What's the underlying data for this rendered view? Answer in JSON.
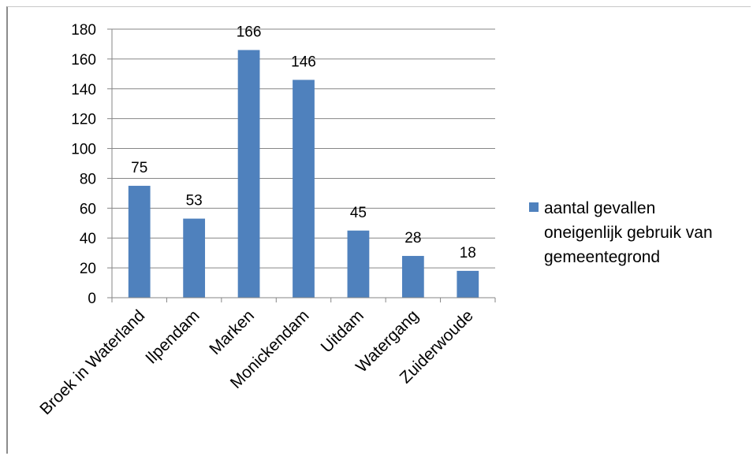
{
  "chart_data": {
    "type": "bar",
    "categories": [
      "Broek in Waterland",
      "Ilpendam",
      "Marken",
      "Monickendam",
      "Uitdam",
      "Watergang",
      "Zuiderwoude"
    ],
    "series": [
      {
        "name": "aantal gevallen oneigenlijk gebruik van gemeentegrond",
        "values": [
          75,
          53,
          166,
          146,
          45,
          28,
          18
        ],
        "color": "#4f81bd"
      }
    ],
    "data_labels": [
      "75",
      "53",
      "166",
      "146",
      "45",
      "28",
      "18"
    ],
    "y_ticks": [
      "0",
      "20",
      "40",
      "60",
      "80",
      "100",
      "120",
      "140",
      "160",
      "180"
    ],
    "ylim": [
      0,
      180
    ],
    "grid": true,
    "legend": {
      "placement": "right",
      "lines": [
        "aantal gevallen",
        "oneigenlijk gebruik van",
        "gemeentegrond"
      ]
    },
    "title": "",
    "xlabel": "",
    "ylabel": ""
  }
}
